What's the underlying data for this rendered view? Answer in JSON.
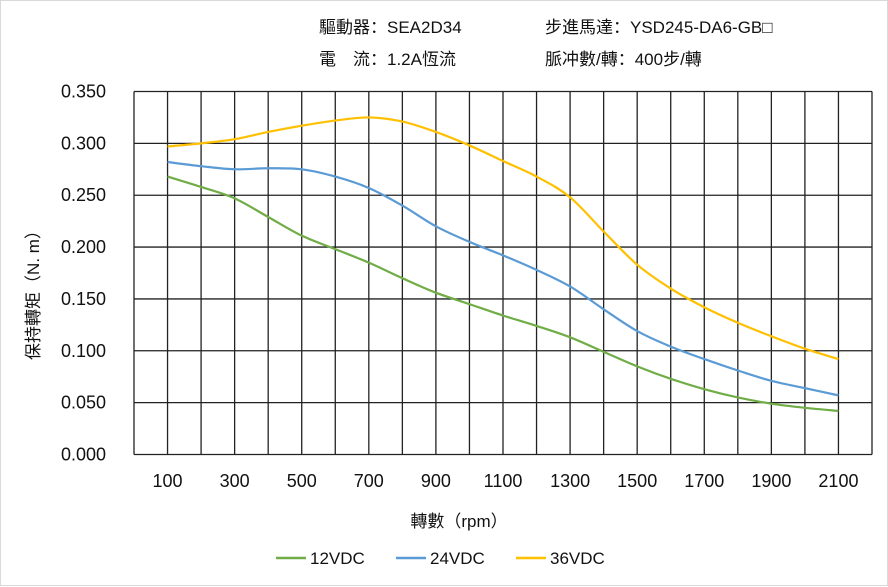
{
  "header": {
    "driver": "驅動器：SEA2D34",
    "current": "電　流：1.2A恆流",
    "motor": "步進馬達：YSD245-DA6-GB□",
    "pulses": "脈冲數/轉：400步/轉"
  },
  "chart_data": {
    "type": "line",
    "title": "",
    "xlabel": "轉數（rpm）",
    "ylabel": "保持轉矩（N. m）",
    "xlim": [
      0,
      2200
    ],
    "ylim": [
      0,
      0.35
    ],
    "grid": true,
    "legend_position": "bottom",
    "xticks": [
      "100",
      "300",
      "500",
      "700",
      "900",
      "1100",
      "1300",
      "1500",
      "1700",
      "1900",
      "2100"
    ],
    "yticks": [
      "0.000",
      "0.050",
      "0.100",
      "0.150",
      "0.200",
      "0.250",
      "0.300",
      "0.350"
    ],
    "x": [
      100,
      200,
      300,
      400,
      500,
      600,
      700,
      800,
      900,
      1000,
      1100,
      1200,
      1300,
      1400,
      1500,
      1600,
      1700,
      1800,
      1900,
      2000,
      2100
    ],
    "series": [
      {
        "name": "12VDC",
        "color": "#70ad47",
        "values": [
          0.268,
          0.258,
          0.247,
          0.229,
          0.211,
          0.198,
          0.185,
          0.17,
          0.156,
          0.145,
          0.134,
          0.124,
          0.113,
          0.099,
          0.085,
          0.073,
          0.063,
          0.055,
          0.049,
          0.045,
          0.042
        ]
      },
      {
        "name": "24VDC",
        "color": "#5b9bd5",
        "values": [
          0.282,
          0.278,
          0.275,
          0.276,
          0.275,
          0.268,
          0.257,
          0.24,
          0.22,
          0.205,
          0.192,
          0.178,
          0.162,
          0.14,
          0.119,
          0.104,
          0.092,
          0.081,
          0.071,
          0.064,
          0.057
        ]
      },
      {
        "name": "36VDC",
        "color": "#ffc000",
        "values": [
          0.297,
          0.3,
          0.304,
          0.311,
          0.317,
          0.322,
          0.325,
          0.321,
          0.311,
          0.298,
          0.283,
          0.268,
          0.248,
          0.215,
          0.183,
          0.16,
          0.142,
          0.127,
          0.114,
          0.102,
          0.092
        ]
      }
    ]
  }
}
